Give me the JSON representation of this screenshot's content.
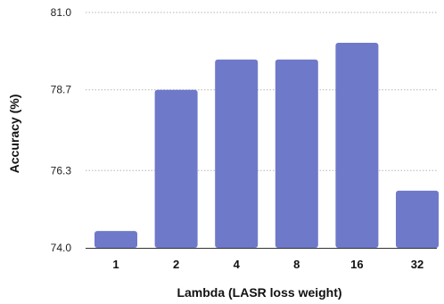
{
  "chart_data": {
    "type": "bar",
    "categories": [
      "1",
      "2",
      "4",
      "8",
      "16",
      "32"
    ],
    "values": [
      74.5,
      78.7,
      79.6,
      79.6,
      80.1,
      75.7
    ],
    "xlabel": "Lambda (LASR loss weight)",
    "ylabel": "Accuracy (%)",
    "ylim": [
      74.0,
      81.0
    ],
    "yticks": [
      "74.0",
      "76.3",
      "78.7",
      "81.0"
    ],
    "grid": true,
    "bar_color": "#6f79c9",
    "grid_color": "#b5b5b5",
    "axis_color": "#333333"
  }
}
